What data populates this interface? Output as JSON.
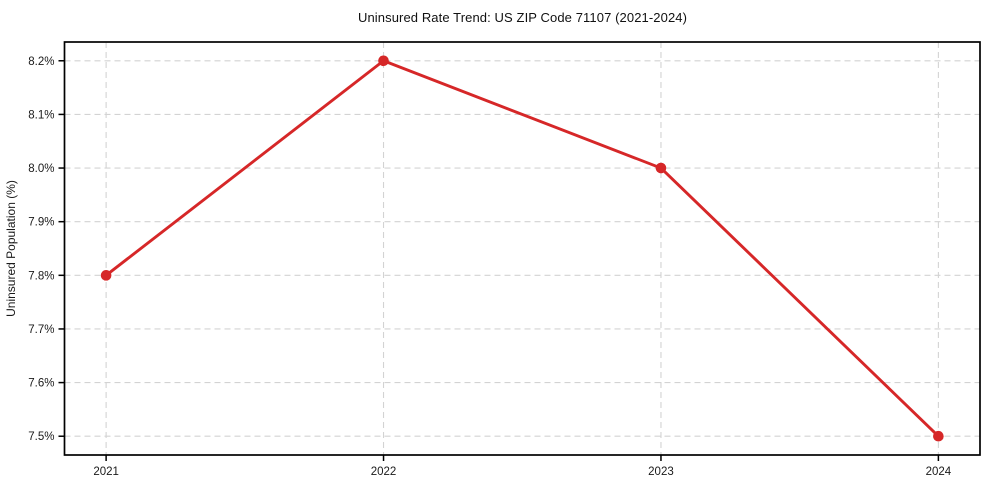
{
  "chart_data": {
    "type": "line",
    "title": "Uninsured Rate Trend: US ZIP Code 71107 (2021-2024)",
    "xlabel": "",
    "ylabel": "Uninsured Population (%)",
    "x": [
      2021,
      2022,
      2023,
      2024
    ],
    "x_tick_labels": [
      "2021",
      "2022",
      "2023",
      "2024"
    ],
    "series": [
      {
        "name": "Uninsured rate",
        "values": [
          7.8,
          8.2,
          8.0,
          7.5
        ]
      }
    ],
    "y_ticks": [
      7.5,
      7.6,
      7.7,
      7.8,
      7.9,
      8.0,
      8.1,
      8.2
    ],
    "y_tick_labels": [
      "7.5%",
      "7.6%",
      "7.7%",
      "7.8%",
      "7.9%",
      "8.0%",
      "8.1%",
      "8.2%"
    ],
    "xlim": [
      2020.85,
      2024.15
    ],
    "ylim": [
      7.465,
      8.235
    ],
    "grid": "dashed-both-axes",
    "legend": "none",
    "colors": {
      "line": "#d62728",
      "marker": "#d62728",
      "grid": "#d3d3d3",
      "axis": "#000000",
      "text": "#1a1a1a",
      "background": "#ffffff"
    }
  }
}
